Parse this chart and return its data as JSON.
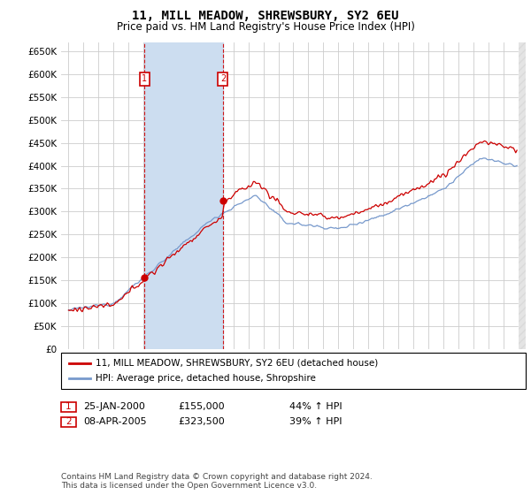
{
  "title": "11, MILL MEADOW, SHREWSBURY, SY2 6EU",
  "subtitle": "Price paid vs. HM Land Registry's House Price Index (HPI)",
  "title_fontsize": 10,
  "subtitle_fontsize": 8.5,
  "background_color": "#ffffff",
  "plot_bg_color": "#ffffff",
  "grid_color": "#cccccc",
  "red_line_color": "#cc0000",
  "blue_line_color": "#7799cc",
  "sale1_date_num": 2000.07,
  "sale1_price": 155000,
  "sale1_label": "1",
  "sale2_date_num": 2005.3,
  "sale2_price": 323500,
  "sale2_label": "2",
  "vline_color": "#cc0000",
  "shade_color": "#ccddf0",
  "legend_line1": "11, MILL MEADOW, SHREWSBURY, SY2 6EU (detached house)",
  "legend_line2": "HPI: Average price, detached house, Shropshire",
  "annotation1_box": "1",
  "annotation1_date": "25-JAN-2000",
  "annotation1_price": "£155,000",
  "annotation1_hpi": "44% ↑ HPI",
  "annotation2_box": "2",
  "annotation2_date": "08-APR-2005",
  "annotation2_price": "£323,500",
  "annotation2_hpi": "39% ↑ HPI",
  "footer": "Contains HM Land Registry data © Crown copyright and database right 2024.\nThis data is licensed under the Open Government Licence v3.0.",
  "ylim": [
    0,
    670000
  ],
  "yticks": [
    0,
    50000,
    100000,
    150000,
    200000,
    250000,
    300000,
    350000,
    400000,
    450000,
    500000,
    550000,
    600000,
    650000
  ],
  "xmin": 1994.5,
  "xmax": 2025.5
}
